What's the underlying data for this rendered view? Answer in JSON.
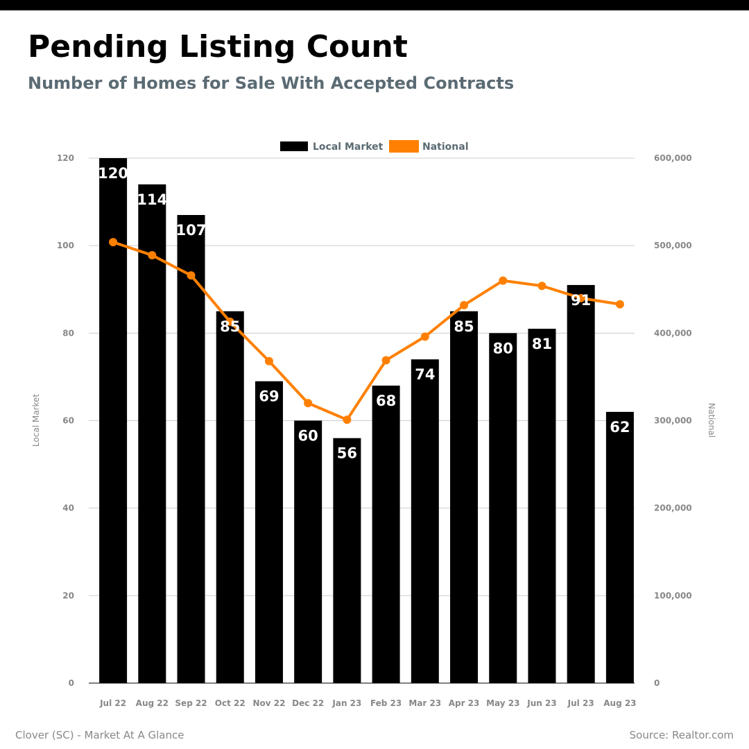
{
  "header": {
    "title": "Pending Listing Count",
    "subtitle": "Number of Homes for Sale With Accepted Contracts"
  },
  "footer": {
    "left": "Clover (SC) - Market At A Glance",
    "right": "Source: Realtor.com"
  },
  "colors": {
    "topbar": "#000000",
    "subtitle": "#5b6b73",
    "bars": "#000000",
    "line": "#ff8000",
    "grid": "#cccccc",
    "tick": "#888888"
  },
  "chart_data": {
    "type": "bar",
    "categories": [
      "Jul 22",
      "Aug 22",
      "Sep 22",
      "Oct 22",
      "Nov 22",
      "Dec 22",
      "Jan 23",
      "Feb 23",
      "Mar 23",
      "Apr 23",
      "May 23",
      "Jun 23",
      "Jul 23",
      "Aug 23"
    ],
    "series": [
      {
        "name": "Local Market",
        "type": "bar",
        "axis": "left",
        "values": [
          120,
          114,
          107,
          85,
          69,
          60,
          56,
          68,
          74,
          85,
          80,
          81,
          91,
          62
        ],
        "data_labels": [
          "120",
          "114",
          "107",
          "85",
          "69",
          "60",
          "56",
          "68",
          "74",
          "85",
          "80",
          "81",
          "91",
          "62"
        ]
      },
      {
        "name": "National",
        "type": "line",
        "axis": "right",
        "values": [
          504000,
          489000,
          466000,
          413000,
          368000,
          320000,
          301000,
          369000,
          396000,
          432000,
          460000,
          454000,
          440000,
          433000
        ]
      }
    ],
    "ylabel": "Local Market",
    "y2label": "National",
    "ylim": [
      0,
      120
    ],
    "y2lim": [
      0,
      600000
    ],
    "yticks": [
      "0",
      "20",
      "40",
      "60",
      "80",
      "100",
      "120"
    ],
    "y2ticks": [
      "0",
      "100,000",
      "200,000",
      "300,000",
      "400,000",
      "500,000",
      "600,000"
    ],
    "legend": "top-center",
    "grid": true
  }
}
